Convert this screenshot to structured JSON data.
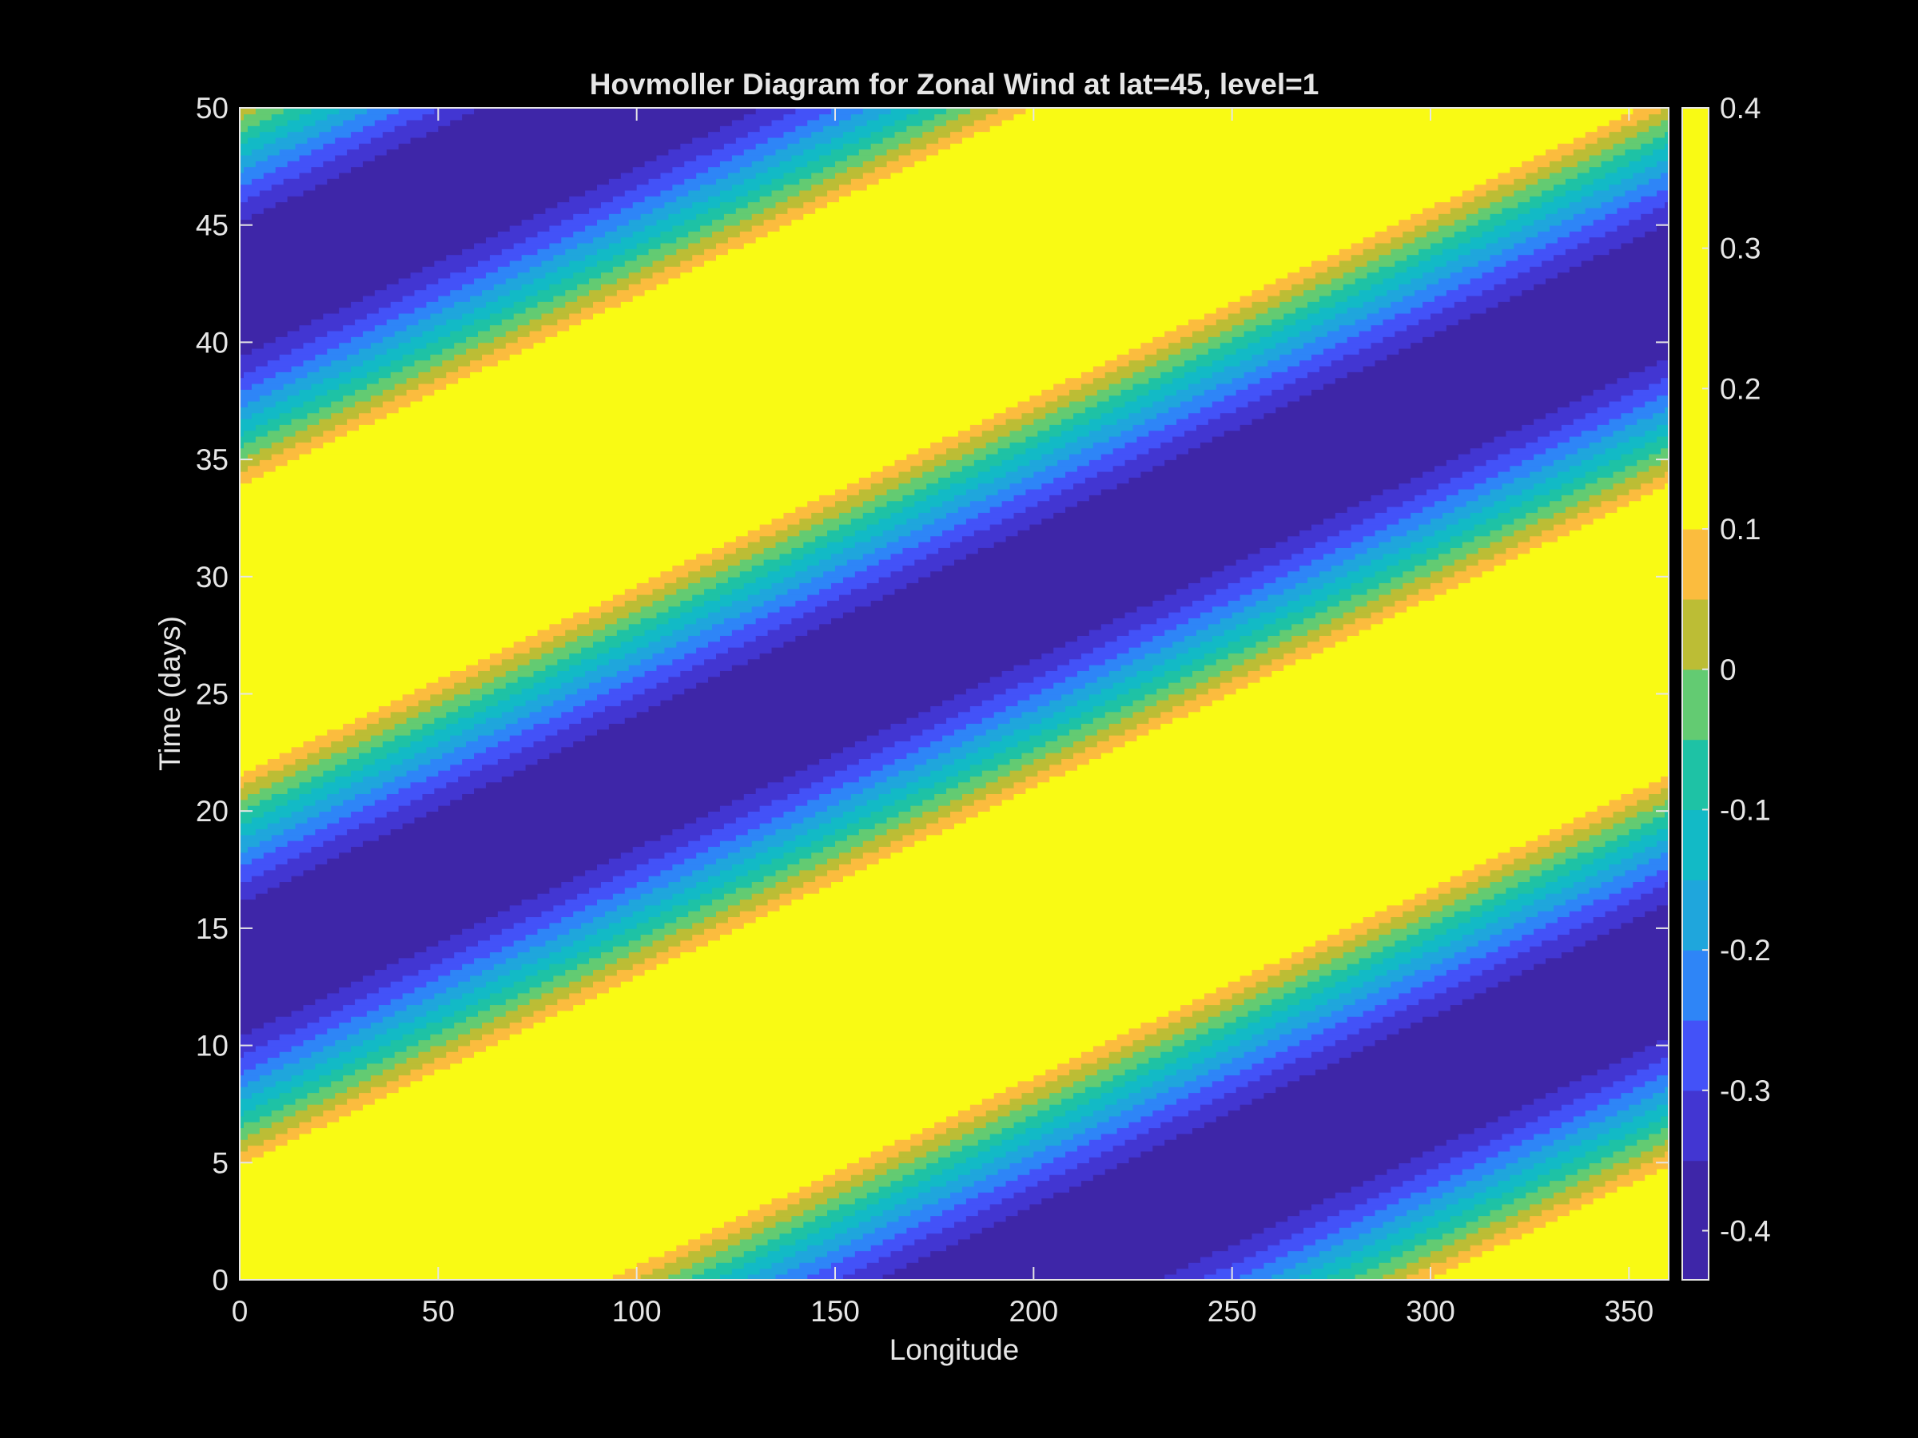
{
  "chart_data": {
    "type": "heatmap",
    "subtype": "filled-contour",
    "title": "Hovmoller Diagram for Zonal Wind at lat=45, level=1",
    "xlabel": "Longitude",
    "ylabel": "Time (days)",
    "xlim": [
      0,
      360
    ],
    "ylim": [
      0,
      50
    ],
    "xticks": [
      "0",
      "50",
      "100",
      "150",
      "200",
      "250",
      "300",
      "350"
    ],
    "yticks": [
      "0",
      "5",
      "10",
      "15",
      "20",
      "25",
      "30",
      "35",
      "40",
      "45",
      "50"
    ],
    "colorbar": {
      "clim": [
        -0.435,
        0.4
      ],
      "ticks": [
        "-0.4",
        "-0.3",
        "-0.2",
        "-0.1",
        "0",
        "0.1",
        "0.2",
        "0.3",
        "0.4"
      ],
      "levels": [
        -0.35,
        -0.3,
        -0.25,
        -0.2,
        -0.15,
        -0.1,
        -0.05,
        0,
        0.05,
        0.1,
        0.15,
        0.2,
        0.25,
        0.3
      ],
      "level_colors": [
        "#3e26a8",
        "#4236d2",
        "#4352f8",
        "#2e85f7",
        "#1fa6dc",
        "#12bac6",
        "#1ec2a5",
        "#63cb72",
        "#bcbd35",
        "#fbbc3e",
        "#f9fa14"
      ],
      "colormap": "parula"
    },
    "field": {
      "description": "traveling zonal wavenumber-1 wave, eastward propagation",
      "amplitude": 0.43,
      "zonal_wavenumber": 1,
      "phase_speed_deg_per_day": 12.4,
      "peak_longitude_at_day_0": 16,
      "max_contour_value": 0.4,
      "min_contour_value": -0.4
    },
    "grid": false,
    "background": "#000000",
    "axis_color": "#e6e6e6"
  }
}
